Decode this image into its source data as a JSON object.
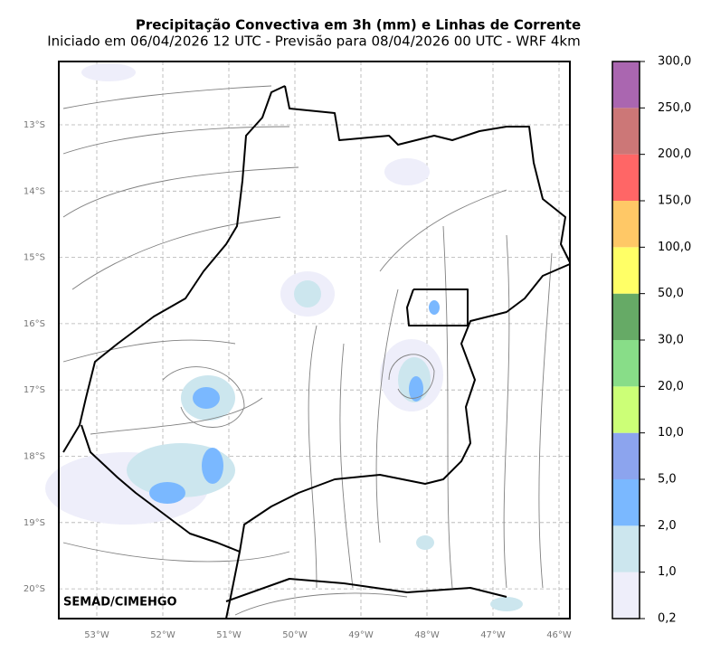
{
  "title": "Precipitação Convectiva em 3h (mm) e Linhas de Corrente",
  "subtitle": "Iniciado em 06/04/2026 12 UTC - Previsão para 08/04/2026 00 UTC - WRF 4km",
  "credit": "SEMAD/CIMEHGO",
  "lat_labels": [
    "13°S",
    "14°S",
    "15°S",
    "16°S",
    "17°S",
    "18°S",
    "19°S",
    "20°S"
  ],
  "lon_labels": [
    "53°W",
    "52°W",
    "51°W",
    "50°W",
    "49°W",
    "48°W",
    "47°W",
    "46°W"
  ],
  "colorbar": {
    "labels": [
      "0,2",
      "1,0",
      "2,0",
      "5,0",
      "10,0",
      "20,0",
      "30,0",
      "50,0",
      "100,0",
      "150,0",
      "200,0",
      "250,0",
      "300,0"
    ],
    "colors": [
      "#eeeefa",
      "#cce6ee",
      "#7ab8ff",
      "#8ca4ee",
      "#ccff77",
      "#88dd88",
      "#66aa66",
      "#ffff66",
      "#ffc866",
      "#ff6666",
      "#cc7777",
      "#aa66b0"
    ]
  }
}
